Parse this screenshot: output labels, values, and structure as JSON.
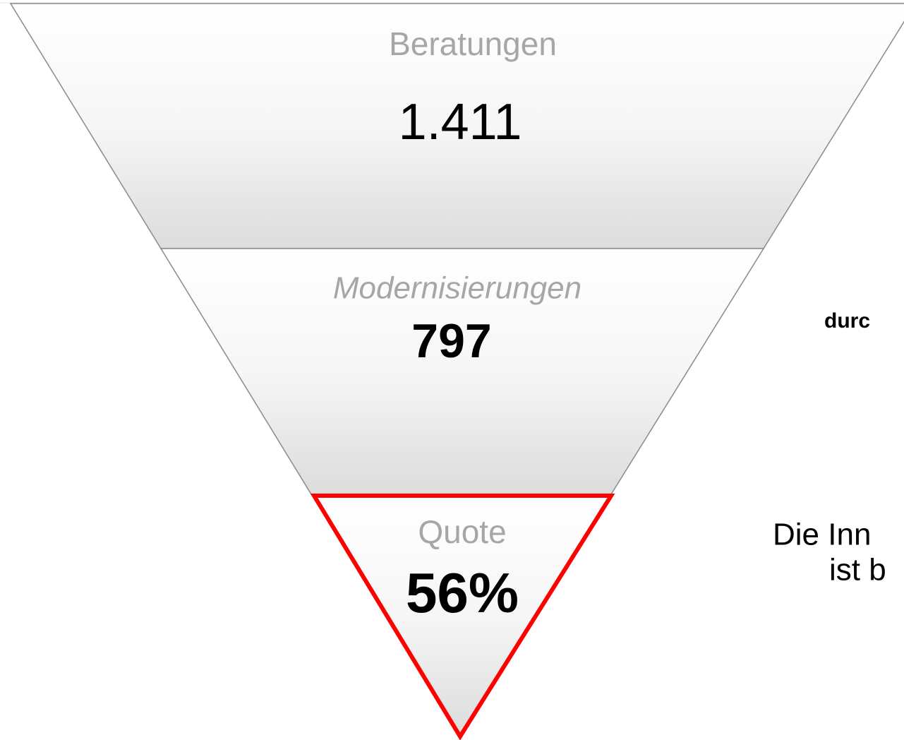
{
  "sections": [
    {
      "label": "Beratungen",
      "value": "1.411"
    },
    {
      "label": "Modernisierungen",
      "value": "797"
    },
    {
      "label": "Quote",
      "value": "56%"
    }
  ],
  "side_texts": [
    "durc",
    "Die Inn",
    "ist b"
  ]
}
